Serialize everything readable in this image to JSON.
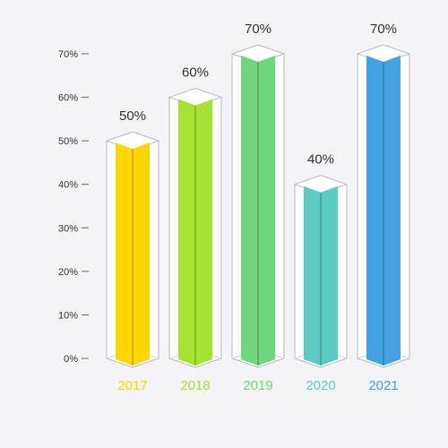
{
  "chart_data": {
    "type": "bar",
    "categories": [
      "2017",
      "2018",
      "2019",
      "2020",
      "2021"
    ],
    "values": [
      50,
      60,
      70,
      40,
      70
    ],
    "data_labels": [
      "50%",
      "60%",
      "70%",
      "40%",
      "70%"
    ],
    "colors": [
      "#ffd600",
      "#a5e233",
      "#6fd67b",
      "#5bcbc1",
      "#42a2e2"
    ],
    "yticks": [
      {
        "value": 0,
        "label": "0%"
      },
      {
        "value": 10,
        "label": "10%"
      },
      {
        "value": 20,
        "label": "20%"
      },
      {
        "value": 30,
        "label": "30%"
      },
      {
        "value": 40,
        "label": "40%"
      },
      {
        "value": 50,
        "label": "50%"
      },
      {
        "value": 60,
        "label": "60%"
      },
      {
        "value": 70,
        "label": "70%"
      }
    ],
    "ylim": [
      0,
      70
    ],
    "grid": false,
    "title": "",
    "xlabel": "",
    "ylabel": ""
  }
}
